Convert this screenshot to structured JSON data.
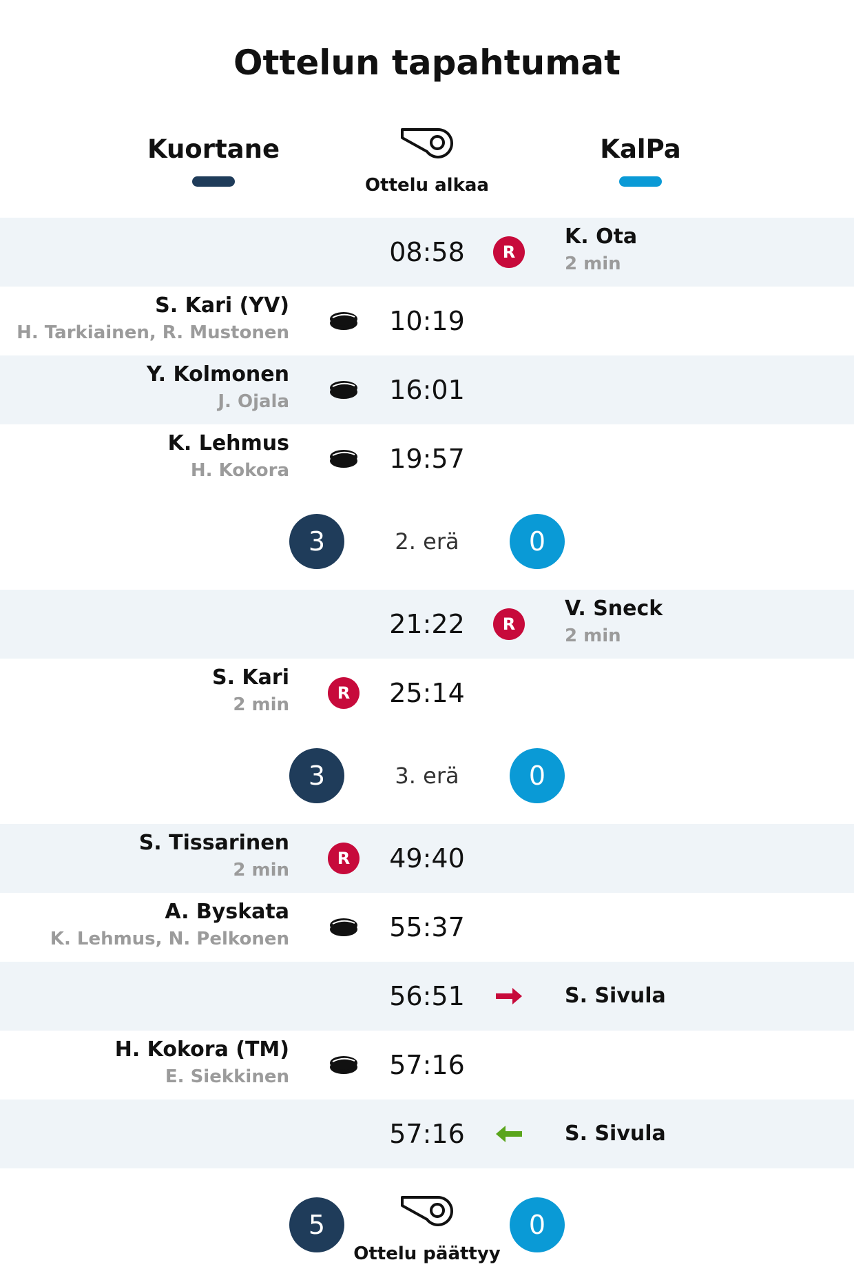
{
  "title": "Ottelun tapahtumat",
  "colors": {
    "home": "#1f3c5a",
    "away": "#0a9ad6",
    "penalty": "#c70a3b",
    "penalty_in": "#5aa51c",
    "shade": "#eff4f8"
  },
  "teams": {
    "home": "Kuortane",
    "away": "KalPa"
  },
  "start_label": "Ottelu alkaa",
  "end_label": "Ottelu päättyy",
  "events": [
    {
      "time": "08:58",
      "side": "away",
      "icon": "penalty-icon",
      "icon_text": "R",
      "name": "K. Ota",
      "sub": "2 min"
    },
    {
      "time": "10:19",
      "side": "home",
      "icon": "puck-icon",
      "name": "S. Kari (YV)",
      "sub": "H. Tarkiainen, R. Mustonen"
    },
    {
      "time": "16:01",
      "side": "home",
      "icon": "puck-icon",
      "name": "Y. Kolmonen",
      "sub": "J. Ojala"
    },
    {
      "time": "19:57",
      "side": "home",
      "icon": "puck-icon",
      "name": "K. Lehmus",
      "sub": "H. Kokora"
    },
    {
      "time": "21:22",
      "side": "away",
      "icon": "penalty-icon",
      "icon_text": "R",
      "name": "V. Sneck",
      "sub": "2 min"
    },
    {
      "time": "25:14",
      "side": "home",
      "icon": "penalty-icon",
      "icon_text": "R",
      "name": "S. Kari",
      "sub": "2 min"
    },
    {
      "time": "49:40",
      "side": "home",
      "icon": "penalty-icon",
      "icon_text": "R",
      "name": "S. Tissarinen",
      "sub": "2 min"
    },
    {
      "time": "55:37",
      "side": "home",
      "icon": "puck-icon",
      "name": "A. Byskata",
      "sub": "K. Lehmus, N. Pelkonen"
    },
    {
      "time": "56:51",
      "side": "away",
      "icon": "goalie-out-arrow-icon",
      "name": "S. Sivula"
    },
    {
      "time": "57:16",
      "side": "home",
      "icon": "puck-icon",
      "name": "H. Kokora (TM)",
      "sub": "E. Siekkinen"
    },
    {
      "time": "57:16",
      "side": "away",
      "icon": "goalie-in-arrow-icon",
      "name": "S. Sivula"
    }
  ],
  "periods": [
    {
      "label": "2. erä",
      "home": "3",
      "away": "0"
    },
    {
      "label": "3. erä",
      "home": "3",
      "away": "0"
    }
  ],
  "final": {
    "home": "5",
    "away": "0"
  }
}
